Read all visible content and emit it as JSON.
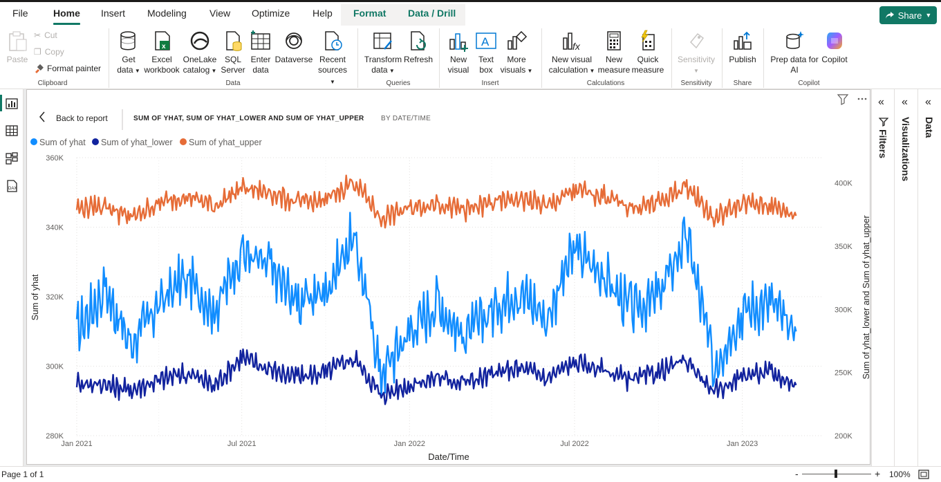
{
  "menu": {
    "items": [
      "File",
      "Home",
      "Insert",
      "Modeling",
      "View",
      "Optimize",
      "Help"
    ],
    "contextual": [
      "Format",
      "Data / Drill"
    ],
    "share_label": "Share"
  },
  "ribbon": {
    "clipboard": {
      "paste": "Paste",
      "cut": "Cut",
      "copy": "Copy",
      "format_painter": "Format painter",
      "label": "Clipboard"
    },
    "data": {
      "get_data": [
        "Get",
        "data"
      ],
      "excel": [
        "Excel",
        "workbook"
      ],
      "onelake": [
        "OneLake",
        "catalog"
      ],
      "sql": [
        "SQL",
        "Server"
      ],
      "enter": [
        "Enter",
        "data"
      ],
      "dataverse": "Dataverse",
      "recent": [
        "Recent",
        "sources"
      ],
      "label": "Data"
    },
    "queries": {
      "transform": [
        "Transform",
        "data"
      ],
      "refresh": "Refresh",
      "label": "Queries"
    },
    "insert": {
      "new_visual": [
        "New",
        "visual"
      ],
      "text_box": [
        "Text",
        "box"
      ],
      "more_visuals": [
        "More",
        "visuals"
      ],
      "label": "Insert"
    },
    "calculations": {
      "new_visual_calc": [
        "New visual",
        "calculation"
      ],
      "new_measure": [
        "New",
        "measure"
      ],
      "quick_measure": [
        "Quick",
        "measure"
      ],
      "label": "Calculations"
    },
    "sensitivity": {
      "btn": "Sensitivity",
      "label": "Sensitivity"
    },
    "share": {
      "publish": "Publish",
      "label": "Share"
    },
    "copilot": {
      "prep": [
        "Prep data for",
        "AI"
      ],
      "copilot": "Copilot",
      "label": "Copilot"
    }
  },
  "visual_header": {
    "back": "Back to report",
    "title": "SUM OF YHAT, SUM OF YHAT_LOWER AND SUM OF YHAT_UPPER",
    "subtitle": "BY DATE/TIME"
  },
  "panes": {
    "filters": "Filters",
    "visualizations": "Visualizations",
    "data": "Data"
  },
  "status": {
    "page": "Page 1 of 1",
    "zoom": "100%"
  },
  "colors": {
    "yhat": "#118dff",
    "yhat_lower": "#12239e",
    "yhat_upper": "#e66c37",
    "accent": "#117865"
  },
  "chart_data": {
    "type": "line",
    "xlabel": "Date/Time",
    "ylabel_left": "Sum of yhat",
    "ylabel_right": "Sum of yhat_lower and Sum of yhat_upper",
    "x_ticks": [
      "Jan 2021",
      "Jul 2021",
      "Jan 2022",
      "Jul 2022",
      "Jan 2023"
    ],
    "x_range": [
      "2021-01-01",
      "2023-03-31"
    ],
    "y_left_ticks": [
      "280K",
      "300K",
      "320K",
      "340K",
      "360K"
    ],
    "y_left_range": [
      280000,
      360000
    ],
    "y_right_ticks": [
      "200K",
      "250K",
      "300K",
      "350K",
      "400K"
    ],
    "y_right_range": [
      200000,
      420000
    ],
    "legend_position": "top-left",
    "grid": true,
    "series": [
      {
        "name": "Sum of yhat",
        "axis": "left",
        "color": "#118dff",
        "points": [
          [
            "2021-01-01",
            310000
          ],
          [
            "2021-02-01",
            322000
          ],
          [
            "2021-03-01",
            306000
          ],
          [
            "2021-04-01",
            318000
          ],
          [
            "2021-05-01",
            326000
          ],
          [
            "2021-06-01",
            316000
          ],
          [
            "2021-07-01",
            333000
          ],
          [
            "2021-08-01",
            328000
          ],
          [
            "2021-09-01",
            318000
          ],
          [
            "2021-10-01",
            322000
          ],
          [
            "2021-11-01",
            338000
          ],
          [
            "2021-12-01",
            298000
          ],
          [
            "2022-01-01",
            310000
          ],
          [
            "2022-02-01",
            318000
          ],
          [
            "2022-03-01",
            308000
          ],
          [
            "2022-04-01",
            316000
          ],
          [
            "2022-05-01",
            322000
          ],
          [
            "2022-06-01",
            314000
          ],
          [
            "2022-07-01",
            334000
          ],
          [
            "2022-08-01",
            326000
          ],
          [
            "2022-09-01",
            316000
          ],
          [
            "2022-10-01",
            320000
          ],
          [
            "2022-11-01",
            338000
          ],
          [
            "2022-12-01",
            300000
          ],
          [
            "2023-01-01",
            316000
          ],
          [
            "2023-02-01",
            318000
          ],
          [
            "2023-03-01",
            310000
          ]
        ]
      },
      {
        "name": "Sum of yhat_lower",
        "axis": "right",
        "color": "#12239e",
        "points": [
          [
            "2021-01-01",
            242000
          ],
          [
            "2021-02-01",
            240000
          ],
          [
            "2021-03-01",
            236000
          ],
          [
            "2021-04-01",
            244000
          ],
          [
            "2021-05-01",
            250000
          ],
          [
            "2021-06-01",
            240000
          ],
          [
            "2021-07-01",
            262000
          ],
          [
            "2021-08-01",
            252000
          ],
          [
            "2021-09-01",
            246000
          ],
          [
            "2021-10-01",
            250000
          ],
          [
            "2021-11-01",
            262000
          ],
          [
            "2021-12-01",
            232000
          ],
          [
            "2022-01-01",
            240000
          ],
          [
            "2022-02-01",
            246000
          ],
          [
            "2022-03-01",
            242000
          ],
          [
            "2022-04-01",
            248000
          ],
          [
            "2022-05-01",
            254000
          ],
          [
            "2022-06-01",
            246000
          ],
          [
            "2022-07-01",
            258000
          ],
          [
            "2022-08-01",
            252000
          ],
          [
            "2022-09-01",
            244000
          ],
          [
            "2022-10-01",
            250000
          ],
          [
            "2022-11-01",
            260000
          ],
          [
            "2022-12-01",
            234000
          ],
          [
            "2023-01-01",
            248000
          ],
          [
            "2023-02-01",
            250000
          ],
          [
            "2023-03-01",
            240000
          ]
        ]
      },
      {
        "name": "Sum of yhat_upper",
        "axis": "right",
        "color": "#e66c37",
        "points": [
          [
            "2021-01-01",
            380000
          ],
          [
            "2021-02-01",
            382000
          ],
          [
            "2021-03-01",
            372000
          ],
          [
            "2021-04-01",
            384000
          ],
          [
            "2021-05-01",
            390000
          ],
          [
            "2021-06-01",
            382000
          ],
          [
            "2021-07-01",
            396000
          ],
          [
            "2021-08-01",
            392000
          ],
          [
            "2021-09-01",
            384000
          ],
          [
            "2021-10-01",
            386000
          ],
          [
            "2021-11-01",
            402000
          ],
          [
            "2021-12-01",
            372000
          ],
          [
            "2022-01-01",
            380000
          ],
          [
            "2022-02-01",
            384000
          ],
          [
            "2022-03-01",
            378000
          ],
          [
            "2022-04-01",
            384000
          ],
          [
            "2022-05-01",
            388000
          ],
          [
            "2022-06-01",
            382000
          ],
          [
            "2022-07-01",
            394000
          ],
          [
            "2022-08-01",
            390000
          ],
          [
            "2022-09-01",
            380000
          ],
          [
            "2022-10-01",
            384000
          ],
          [
            "2022-11-01",
            398000
          ],
          [
            "2022-12-01",
            372000
          ],
          [
            "2023-01-01",
            384000
          ],
          [
            "2023-02-01",
            382000
          ],
          [
            "2023-03-01",
            374000
          ]
        ]
      }
    ]
  }
}
